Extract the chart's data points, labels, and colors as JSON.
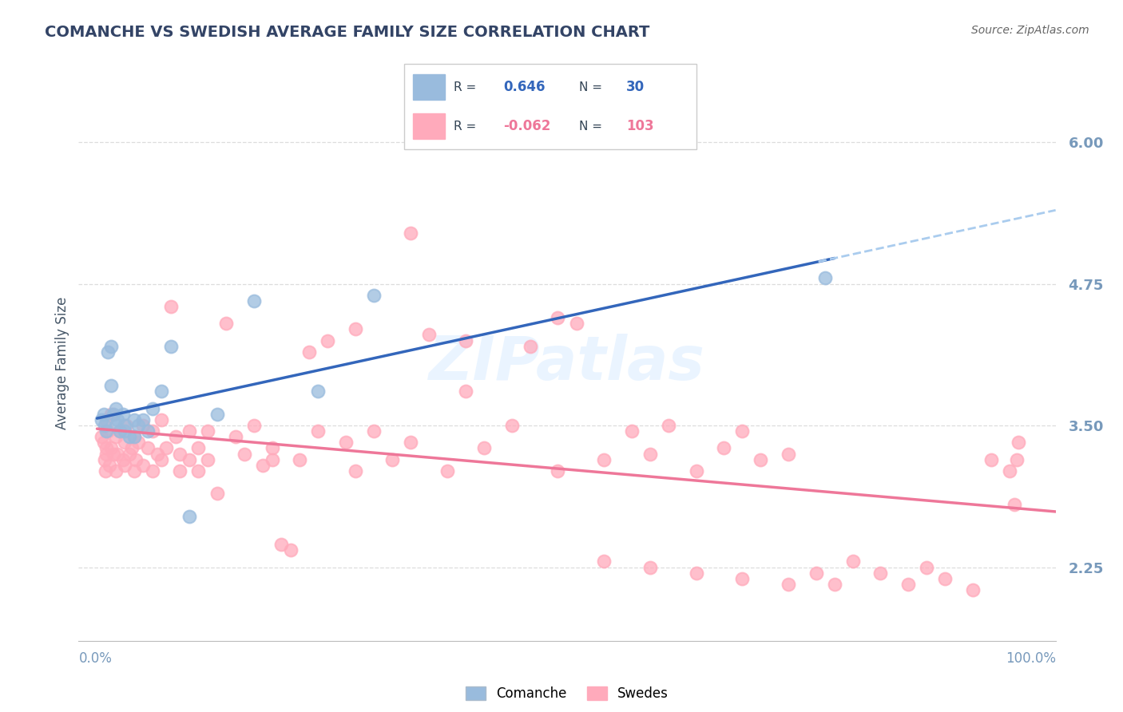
{
  "title": "COMANCHE VS SWEDISH AVERAGE FAMILY SIZE CORRELATION CHART",
  "source": "Source: ZipAtlas.com",
  "ylabel": "Average Family Size",
  "legend_label1": "Comanche",
  "legend_label2": "Swedes",
  "r1": "0.646",
  "n1": "30",
  "r2": "-0.062",
  "n2": "103",
  "ylim": [
    1.6,
    6.5
  ],
  "xlim": [
    -0.02,
    1.04
  ],
  "yticks": [
    2.25,
    3.5,
    4.75,
    6.0
  ],
  "ytick_labels": [
    "2.25",
    "3.50",
    "4.75",
    "6.00"
  ],
  "color_blue": "#99BBDD",
  "color_pink": "#FFAABB",
  "color_blue_line": "#3366BB",
  "color_pink_line": "#EE7799",
  "color_dashed": "#AACCEE",
  "watermark_color": "#DDEEFF",
  "title_color": "#334466",
  "axis_color": "#7799BB",
  "grid_color": "#DDDDDD",
  "comanche_x": [
    0.005,
    0.007,
    0.008,
    0.01,
    0.012,
    0.015,
    0.015,
    0.018,
    0.02,
    0.02,
    0.022,
    0.025,
    0.028,
    0.03,
    0.03,
    0.035,
    0.04,
    0.04,
    0.045,
    0.05,
    0.055,
    0.06,
    0.07,
    0.08,
    0.1,
    0.13,
    0.17,
    0.24,
    0.3,
    0.79
  ],
  "comanche_y": [
    3.55,
    3.6,
    3.5,
    3.45,
    4.15,
    4.2,
    3.85,
    3.6,
    3.65,
    3.5,
    3.55,
    3.45,
    3.6,
    3.5,
    3.45,
    3.4,
    3.55,
    3.4,
    3.5,
    3.55,
    3.45,
    3.65,
    3.8,
    4.2,
    2.7,
    3.6,
    4.6,
    3.8,
    4.65,
    4.8
  ],
  "swedes_x": [
    0.005,
    0.007,
    0.008,
    0.009,
    0.01,
    0.01,
    0.01,
    0.012,
    0.013,
    0.015,
    0.015,
    0.018,
    0.02,
    0.02,
    0.022,
    0.025,
    0.028,
    0.03,
    0.03,
    0.032,
    0.035,
    0.038,
    0.04,
    0.04,
    0.042,
    0.045,
    0.05,
    0.05,
    0.055,
    0.06,
    0.06,
    0.065,
    0.07,
    0.07,
    0.075,
    0.08,
    0.085,
    0.09,
    0.09,
    0.1,
    0.1,
    0.11,
    0.11,
    0.12,
    0.12,
    0.13,
    0.14,
    0.15,
    0.16,
    0.17,
    0.18,
    0.19,
    0.2,
    0.21,
    0.22,
    0.23,
    0.24,
    0.25,
    0.27,
    0.28,
    0.3,
    0.32,
    0.34,
    0.36,
    0.38,
    0.4,
    0.42,
    0.45,
    0.47,
    0.5,
    0.52,
    0.55,
    0.58,
    0.6,
    0.62,
    0.65,
    0.68,
    0.7,
    0.72,
    0.75,
    0.78,
    0.8,
    0.82,
    0.85,
    0.88,
    0.9,
    0.92,
    0.95,
    0.97,
    0.99,
    0.995,
    0.998,
    1.0,
    0.34,
    0.28,
    0.19,
    0.4,
    0.5,
    0.55,
    0.6,
    0.65,
    0.7,
    0.75
  ],
  "swedes_y": [
    3.4,
    3.35,
    3.2,
    3.1,
    3.3,
    3.55,
    3.25,
    3.45,
    3.15,
    3.6,
    3.3,
    3.25,
    3.4,
    3.1,
    3.25,
    3.45,
    3.2,
    3.35,
    3.15,
    3.5,
    3.25,
    3.3,
    3.4,
    3.1,
    3.2,
    3.35,
    3.5,
    3.15,
    3.3,
    3.45,
    3.1,
    3.25,
    3.55,
    3.2,
    3.3,
    4.55,
    3.4,
    3.25,
    3.1,
    3.45,
    3.2,
    3.3,
    3.1,
    3.45,
    3.2,
    2.9,
    4.4,
    3.4,
    3.25,
    3.5,
    3.15,
    3.3,
    2.45,
    2.4,
    3.2,
    4.15,
    3.45,
    4.25,
    3.35,
    3.1,
    3.45,
    3.2,
    3.35,
    4.3,
    3.1,
    3.8,
    3.3,
    3.5,
    4.2,
    3.1,
    4.4,
    3.2,
    3.45,
    3.25,
    3.5,
    3.1,
    3.3,
    3.45,
    3.2,
    3.25,
    2.2,
    2.1,
    2.3,
    2.2,
    2.1,
    2.25,
    2.15,
    2.05,
    3.2,
    3.1,
    2.8,
    3.2,
    3.35,
    5.2,
    4.35,
    3.2,
    4.25,
    4.45,
    2.3,
    2.25,
    2.2,
    2.15,
    2.1
  ]
}
